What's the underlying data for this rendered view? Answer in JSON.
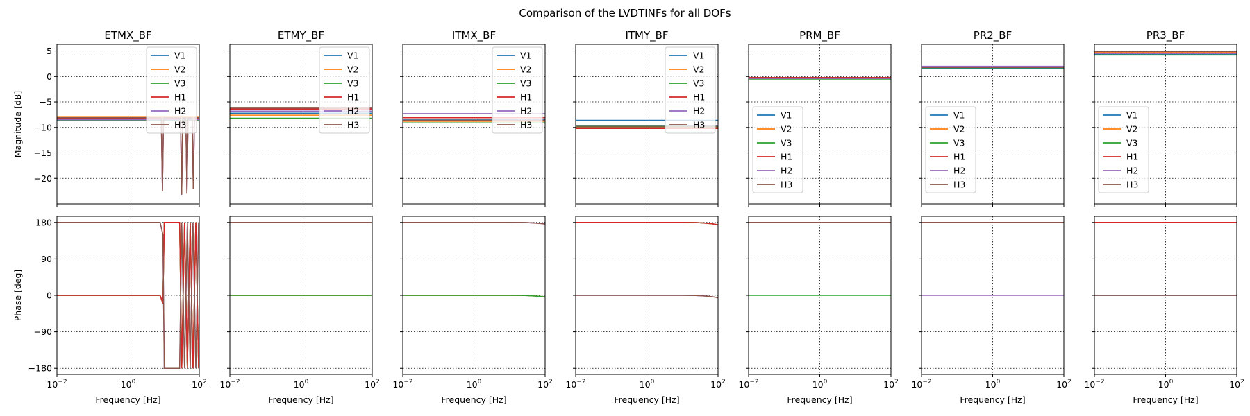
{
  "figure": {
    "title": "Comparison of the LVDTINFs for all DOFs"
  },
  "colors": {
    "V1": "#1f77b4",
    "V2": "#ff7f0e",
    "V3": "#2ca02c",
    "H1": "#d62728",
    "H2": "#9467bd",
    "H3": "#8c564b"
  },
  "chart_data": {
    "type": "line",
    "x_scale": "log",
    "xlim": [
      0.01,
      100
    ],
    "xlabel": "Frequency [Hz]",
    "x_ticks": [
      "10^-2",
      "10^0",
      "10^2"
    ],
    "magnitude_axis": {
      "ylabel": "Magnitude [dB]",
      "ylim": [
        -25,
        6.3
      ],
      "y_ticks": [
        5,
        0,
        -5,
        -10,
        -15,
        -20
      ],
      "y_tick_labels": [
        "5",
        "0",
        "−5",
        "−10",
        "−15",
        "−20"
      ]
    },
    "phase_axis": {
      "ylabel": "Phase [deg]",
      "ylim": [
        -195,
        195
      ],
      "y_ticks": [
        180,
        90,
        0,
        -90,
        -180
      ],
      "y_tick_labels": [
        "180",
        "90",
        "0",
        "−90",
        "−180"
      ]
    },
    "grid": true,
    "grid_style": "dotted",
    "legend_entries": [
      "V1",
      "V2",
      "V3",
      "H1",
      "H2",
      "H3"
    ],
    "panels": [
      {
        "title": "ETMX_BF",
        "legend": "upper-right",
        "magnitude": {
          "V1": -8.3,
          "V2": -8.0,
          "V3": -8.6,
          "H1": -8.2,
          "H2": -8.5,
          "H3": -8.1
        },
        "notches": [
          [
            9.2,
            -22.5
          ],
          [
            32,
            -23.2
          ],
          [
            45,
            -23.0
          ],
          [
            68,
            -22.0
          ]
        ],
        "phase": {
          "V1": 0,
          "V2": 0,
          "V3": 0,
          "H1": 0,
          "H2": 180,
          "H3": 180
        },
        "phase_flip_hz": 9.5,
        "phase_tail_hz": 28
      },
      {
        "title": "ETMY_BF",
        "legend": "upper-right",
        "magnitude": {
          "V1": -7.2,
          "V2": -7.6,
          "V3": -8.2,
          "H1": -6.4,
          "H2": -6.8,
          "H3": -6.2
        },
        "phase": {
          "V1": 0,
          "V2": 0,
          "V3": 0,
          "H1": 180,
          "H2": 180,
          "H3": 180
        }
      },
      {
        "title": "ITMX_BF",
        "legend": "upper-right",
        "magnitude": {
          "V1": -8.4,
          "V2": -8.8,
          "V3": -9.1,
          "H1": -8.1,
          "H2": -7.3,
          "H3": -8.6
        },
        "phase": {
          "V1": 0,
          "V2": 0,
          "V3": 0,
          "H1": 180,
          "H2": 180,
          "H3": 180
        },
        "phase_droop": 4
      },
      {
        "title": "ITMY_BF",
        "legend": "upper-right",
        "magnitude": {
          "V1": -8.6,
          "V2": -10.0,
          "V3": -9.8,
          "H1": -10.2,
          "H2": -9.6,
          "H3": -9.9
        },
        "phase": {
          "V1": 180,
          "V2": 180,
          "V3": 180,
          "H1": 180,
          "H2": 0,
          "H3": 0
        },
        "phase_droop": 6
      },
      {
        "title": "PRM_BF",
        "legend": "center-left",
        "magnitude": {
          "V1": -0.4,
          "V2": -0.3,
          "V3": -0.5,
          "H1": -0.2,
          "H2": -0.4,
          "H3": -0.3
        },
        "phase": {
          "V1": 180,
          "V2": 180,
          "V3": 0,
          "H1": 180,
          "H2": 180,
          "H3": 180
        }
      },
      {
        "title": "PR2_BF",
        "legend": "center-left",
        "magnitude": {
          "V1": 1.6,
          "V2": 1.9,
          "V3": 1.7,
          "H1": 1.8,
          "H2": 2.0,
          "H3": 1.8
        },
        "phase": {
          "V1": 180,
          "V2": 180,
          "V3": 180,
          "H1": 180,
          "H2": 0,
          "H3": 180
        }
      },
      {
        "title": "PR3_BF",
        "legend": "center-left",
        "magnitude": {
          "V1": 4.3,
          "V2": 4.8,
          "V3": 4.2,
          "H1": 4.6,
          "H2": 4.5,
          "H3": 4.9
        },
        "phase": {
          "V1": 0,
          "V2": 180,
          "V3": 180,
          "H1": 180,
          "H2": 0,
          "H3": 0
        }
      }
    ]
  }
}
